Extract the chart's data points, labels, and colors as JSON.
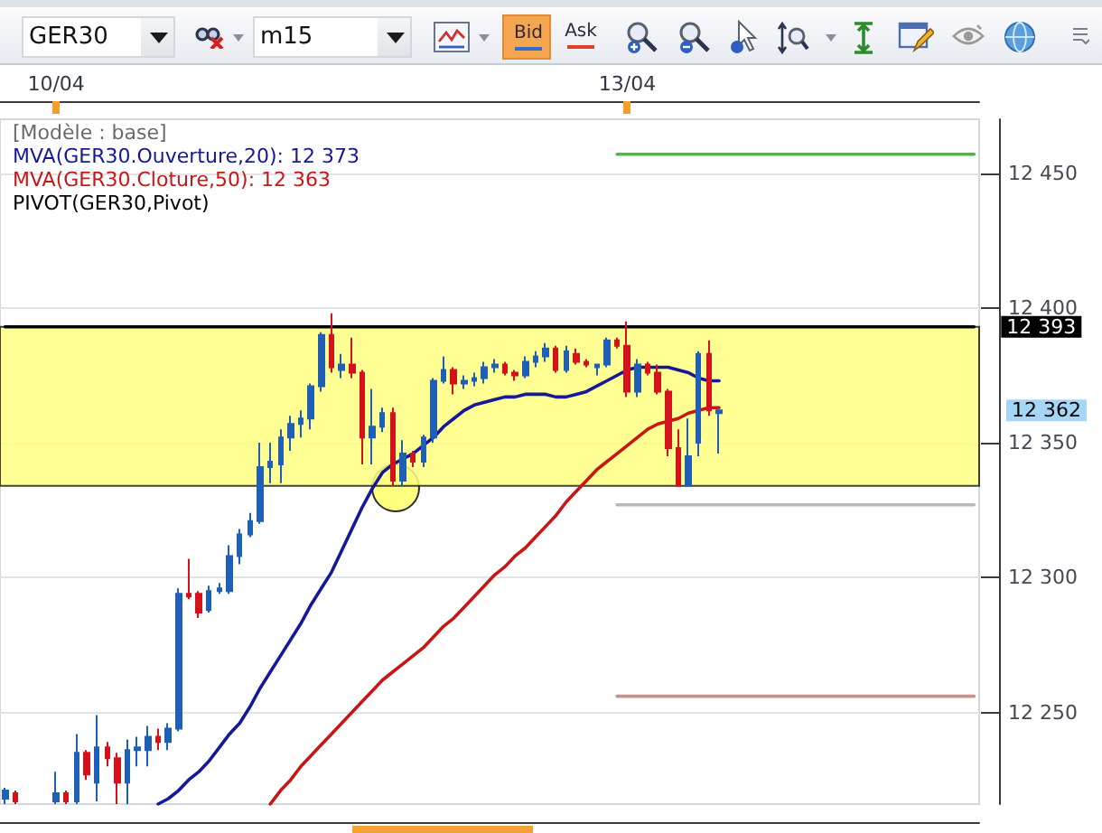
{
  "chart_data": {
    "type": "candlestick",
    "title": "GER30",
    "subtitle": "m15",
    "categories": [
      null,
      null,
      null,
      null,
      null,
      "10/04",
      null,
      null,
      null,
      null,
      null,
      null,
      null,
      null,
      null,
      null,
      null,
      null,
      null,
      null,
      null,
      null,
      null,
      null,
      null,
      null,
      null,
      null,
      null,
      null,
      null,
      null,
      null,
      null,
      null,
      null,
      null,
      null,
      null,
      null,
      null,
      null,
      null,
      null,
      null,
      null,
      null,
      null,
      null,
      null,
      null,
      null,
      null,
      null,
      null,
      null,
      null,
      null,
      null,
      null,
      null,
      "13/04",
      null,
      null,
      null,
      null,
      null,
      null,
      null,
      null,
      null,
      null,
      null,
      null,
      null,
      null,
      null,
      null,
      null,
      null,
      null,
      null,
      null,
      null,
      null,
      null,
      null,
      null,
      null,
      null,
      null,
      null,
      null,
      null,
      null,
      null
    ],
    "series": [
      {
        "ohlc": [
          [
            12218,
            12222,
            12216,
            12221
          ],
          [
            12220,
            12221,
            12216,
            12217
          ],
          null,
          null,
          null,
          [
            12217,
            12228,
            12216,
            12220
          ],
          [
            12220,
            12221,
            12216,
            12217
          ],
          [
            12217,
            12242,
            12216,
            12235
          ],
          [
            12235,
            12236,
            12225,
            12227
          ],
          [
            12224,
            12249,
            12217,
            12237
          ],
          [
            12237,
            12239,
            12230,
            12233
          ],
          [
            12233,
            12235,
            12216,
            12224
          ],
          [
            12224,
            12240,
            12216,
            12236
          ],
          [
            12236,
            12241,
            12230,
            12237
          ],
          [
            12236,
            12245,
            12230,
            12241
          ],
          [
            12241,
            12244,
            12236,
            12239
          ],
          [
            12239,
            12246,
            12236,
            12244
          ],
          [
            12244,
            12296,
            12243,
            12294
          ],
          [
            12294,
            12307,
            12292,
            12293
          ],
          [
            12294,
            12295,
            12285,
            12287
          ],
          [
            12288,
            12297,
            12287,
            12295
          ],
          [
            12295,
            12298,
            12294,
            12296
          ],
          [
            12295,
            12312,
            12294,
            12308
          ],
          [
            12308,
            12318,
            12305,
            12316
          ],
          [
            12316,
            12324,
            12315,
            12321
          ],
          [
            12321,
            12350,
            12320,
            12341
          ],
          [
            12341,
            12350,
            12335,
            12343
          ],
          [
            12342,
            12355,
            12335,
            12352
          ],
          [
            12352,
            12360,
            12347,
            12357
          ],
          [
            12357,
            12362,
            12352,
            12359
          ],
          [
            12359,
            12372,
            12355,
            12371
          ],
          [
            12371,
            12391,
            12369,
            12390
          ],
          [
            12390,
            12398,
            12376,
            12378
          ],
          [
            12377,
            12383,
            12374,
            12379
          ],
          [
            12379,
            12389,
            12374,
            12376
          ],
          [
            12376,
            12377,
            12342,
            12352
          ],
          [
            12352,
            12370,
            12342,
            12356
          ],
          [
            12356,
            12363,
            12354,
            12361
          ],
          [
            12361,
            12363,
            12334,
            12336
          ],
          [
            12336,
            12351,
            12334,
            12346
          ],
          [
            12346,
            12347,
            12341,
            12343
          ],
          [
            12343,
            12353,
            12341,
            12352
          ],
          [
            12352,
            12374,
            12350,
            12373
          ],
          [
            12373,
            12382,
            12372,
            12377
          ],
          [
            12377,
            12378,
            12368,
            12372
          ],
          [
            12372,
            12375,
            12370,
            12373
          ],
          [
            12373,
            12376,
            12371,
            12374
          ],
          [
            12374,
            12380,
            12372,
            12378
          ],
          [
            12378,
            12381,
            12376,
            12379
          ],
          [
            12379,
            12380,
            12375,
            12376
          ],
          [
            12376,
            12377,
            12373,
            12375
          ],
          [
            12375,
            12382,
            12374,
            12380
          ],
          [
            12380,
            12384,
            12378,
            12382
          ],
          [
            12382,
            12387,
            12380,
            12385
          ],
          [
            12385,
            12386,
            12376,
            12377
          ],
          [
            12377,
            12386,
            12376,
            12384
          ],
          [
            12383,
            12385,
            12379,
            12380
          ],
          [
            12380,
            12381,
            12378,
            12379
          ],
          [
            12378,
            12379,
            12375,
            12379
          ],
          [
            12379,
            12389,
            12378,
            12388
          ],
          [
            12388,
            12389,
            12385,
            12386
          ],
          [
            12386,
            12395,
            12367,
            12369
          ],
          [
            12369,
            12381,
            12367,
            12379
          ],
          [
            12379,
            12380,
            12375,
            12376
          ],
          [
            12376,
            12379,
            12368,
            12369
          ],
          [
            12369,
            12370,
            12345,
            12348
          ],
          [
            12348,
            12355,
            12334,
            12334
          ],
          [
            12334,
            12359,
            12334,
            12345
          ],
          [
            12350,
            12384,
            12345,
            12383
          ],
          [
            12383,
            12388,
            12360,
            12362
          ],
          [
            12361,
            12363,
            12346,
            12362
          ],
          null,
          null,
          null,
          null,
          null,
          null,
          null,
          null,
          null,
          null,
          null,
          null,
          null,
          null,
          null,
          null,
          null,
          null,
          null,
          null,
          null,
          null,
          null,
          null,
          null
        ],
        "colors": [
          "#1f5fb5",
          "#d3121b",
          null,
          null,
          null,
          "#1f5fb5",
          "#d3121b",
          "#1f5fb5",
          "#d3121b",
          "#1f5fb5",
          "#d3121b",
          "#d3121b",
          "#1f5fb5",
          "#1f5fb5",
          "#1f5fb5",
          "#d3121b",
          "#1f5fb5",
          "#1f5fb5",
          "#d3121b",
          "#d3121b",
          "#1f5fb5",
          "#1f5fb5",
          "#1f5fb5",
          "#1f5fb5",
          "#1f5fb5",
          "#1f5fb5",
          "#1f5fb5",
          "#1f5fb5",
          "#1f5fb5",
          "#1f5fb5",
          "#1f5fb5",
          "#1f5fb5",
          "#d3121b",
          "#1f5fb5",
          "#d3121b",
          "#d3121b",
          "#1f5fb5",
          "#1f5fb5",
          "#d3121b",
          "#1f5fb5",
          "#d3121b",
          "#1f5fb5",
          "#1f5fb5",
          "#1f5fb5",
          "#d3121b",
          "#1f5fb5",
          "#1f5fb5",
          "#1f5fb5",
          "#1f5fb5",
          "#d3121b",
          "#d3121b",
          "#1f5fb5",
          "#1f5fb5",
          "#1f5fb5",
          "#d3121b",
          "#1f5fb5",
          "#d3121b",
          "#d3121b",
          "#1f5fb5",
          "#1f5fb5",
          "#d3121b",
          "#d3121b",
          "#1f5fb5",
          "#d3121b",
          "#d3121b",
          "#d3121b",
          "#d3121b",
          "#1f5fb5",
          "#1f5fb5",
          "#d3121b",
          "#1f5fb5",
          null,
          null,
          null,
          null,
          null,
          null,
          null,
          null,
          null,
          null,
          null,
          null,
          null,
          null,
          null,
          null,
          null,
          null,
          null,
          null,
          null,
          null,
          null,
          null,
          null
        ]
      },
      {
        "name": "MVA(GER30.Ouverture,20): 12 373",
        "type": "line",
        "color": "#16189a",
        "values": [
          null,
          null,
          null,
          null,
          null,
          null,
          null,
          null,
          null,
          null,
          null,
          null,
          null,
          null,
          null,
          12216,
          12218,
          12221,
          12225,
          12228,
          12232,
          12237,
          12242,
          12246,
          12252,
          12259,
          12265,
          12271,
          12277,
          12283,
          12290,
          12296,
          12302,
          12310,
          12318,
          12326,
          12333,
          12339,
          12342,
          12344,
          12346,
          12349,
          12352,
          12356,
          12359,
          12362,
          12364,
          12365,
          12366,
          12367,
          12367,
          12368,
          12368,
          12368,
          12367,
          12367,
          12368,
          12369,
          12371,
          12373,
          12375,
          12377,
          12378,
          12378,
          12378,
          12378,
          12377,
          12376,
          12374,
          12373,
          12373,
          null,
          null,
          null,
          null,
          null,
          null,
          null,
          null,
          null,
          null,
          null,
          null,
          null,
          null,
          null,
          null,
          null,
          null,
          null,
          null,
          null,
          null,
          null,
          null,
          null
        ]
      },
      {
        "name": "MVA(GER30.Cloture,50): 12 363",
        "type": "line",
        "color": "#c81616",
        "values": [
          null,
          null,
          null,
          null,
          null,
          null,
          null,
          null,
          null,
          null,
          null,
          null,
          null,
          null,
          null,
          null,
          null,
          null,
          null,
          null,
          null,
          null,
          null,
          null,
          null,
          null,
          12216,
          12221,
          12225,
          12230,
          12234,
          12238,
          12242,
          12246,
          12250,
          12254,
          12258,
          12262,
          12265,
          12268,
          12271,
          12274,
          12278,
          12282,
          12285,
          12289,
          12293,
          12297,
          12301,
          12304,
          12308,
          12311,
          12315,
          12319,
          12323,
          12328,
          12332,
          12336,
          12340,
          12343,
          12346,
          12349,
          12352,
          12355,
          12357,
          12358,
          12359,
          12361,
          12362,
          12363,
          12363,
          null,
          null,
          null,
          null,
          null,
          null,
          null,
          null,
          null,
          null,
          null,
          null,
          null,
          null,
          null,
          null,
          null,
          null,
          null,
          null,
          null,
          null,
          null,
          null,
          null
        ]
      },
      {
        "name": "PIVOT(GER30,Pivot)",
        "type": "line",
        "color": "#000000",
        "values": [
          12393,
          12393,
          12393,
          12393,
          12393,
          12393,
          12393,
          12393,
          12393,
          12393,
          12393,
          12393,
          12393,
          12393,
          12393,
          12393,
          12393,
          12393,
          12393,
          12393,
          12393,
          12393,
          12393,
          12393,
          12393,
          12393,
          12393,
          12393,
          12393,
          12393,
          12393,
          12393,
          12393,
          12393,
          12393,
          12393,
          12393,
          12393,
          12393,
          12393,
          12393,
          12393,
          12393,
          12393,
          12393,
          12393,
          12393,
          12393,
          12393,
          12393,
          12393,
          12393,
          12393,
          12393,
          12393,
          12393,
          12393,
          12393,
          12393,
          12393,
          12393,
          12393,
          12393,
          12393,
          12393,
          12393,
          12393,
          12393,
          12393,
          12393,
          12393,
          12393,
          12393,
          12393,
          12393,
          12393,
          12393,
          12393,
          12393,
          12393,
          12393,
          12393,
          12393,
          12393,
          12393,
          12393,
          12393,
          12393,
          12393,
          12393,
          12393,
          12393,
          12393,
          12393,
          12393,
          12393
        ],
        "value_labels": [
          null,
          null,
          null,
          null,
          null,
          null,
          null,
          null,
          null,
          null,
          null,
          null,
          null,
          null,
          null,
          null,
          null,
          null,
          null,
          null,
          null,
          null,
          null,
          null,
          null,
          null,
          null,
          null,
          null,
          null,
          null,
          null,
          null,
          null,
          null,
          null,
          null,
          null,
          null,
          null,
          null,
          null,
          null,
          null,
          null,
          null,
          null,
          null,
          null,
          null,
          null,
          null,
          null,
          null,
          null,
          null,
          null,
          null,
          null,
          null,
          null,
          null,
          null,
          null,
          null,
          null,
          null,
          null,
          null,
          null,
          null,
          null,
          null,
          null,
          null,
          null,
          null,
          null,
          null,
          null,
          null,
          null,
          null,
          null,
          null,
          null,
          null,
          null,
          null,
          null,
          null,
          null,
          null,
          null,
          null,
          "12 393"
        ]
      },
      {
        "type": "line",
        "color": "#4cb84c",
        "values": [
          null,
          null,
          null,
          null,
          null,
          null,
          null,
          null,
          null,
          null,
          null,
          null,
          null,
          null,
          null,
          null,
          null,
          null,
          null,
          null,
          null,
          null,
          null,
          null,
          null,
          null,
          null,
          null,
          null,
          null,
          null,
          null,
          null,
          null,
          null,
          null,
          null,
          null,
          null,
          null,
          null,
          null,
          null,
          null,
          null,
          null,
          null,
          null,
          null,
          null,
          null,
          null,
          null,
          null,
          null,
          null,
          null,
          null,
          null,
          null,
          12457,
          12457,
          12457,
          12457,
          12457,
          12457,
          12457,
          12457,
          12457,
          12457,
          12457,
          12457,
          12457,
          12457,
          12457,
          12457,
          12457,
          12457,
          12457,
          12457,
          12457,
          12457,
          12457,
          12457,
          12457,
          12457,
          12457,
          12457,
          12457,
          12457,
          12457,
          12457,
          12457,
          12457,
          12457,
          12457
        ]
      },
      {
        "type": "line",
        "color": "#b9b9b9",
        "values": [
          null,
          null,
          null,
          null,
          null,
          null,
          null,
          null,
          null,
          null,
          null,
          null,
          null,
          null,
          null,
          null,
          null,
          null,
          null,
          null,
          null,
          null,
          null,
          null,
          null,
          null,
          null,
          null,
          null,
          null,
          null,
          null,
          null,
          null,
          null,
          null,
          null,
          null,
          null,
          null,
          null,
          null,
          null,
          null,
          null,
          null,
          null,
          null,
          null,
          null,
          null,
          null,
          null,
          null,
          null,
          null,
          null,
          null,
          null,
          null,
          12327,
          12327,
          12327,
          12327,
          12327,
          12327,
          12327,
          12327,
          12327,
          12327,
          12327,
          12327,
          12327,
          12327,
          12327,
          12327,
          12327,
          12327,
          12327,
          12327,
          12327,
          12327,
          12327,
          12327,
          12327,
          12327,
          12327,
          12327,
          12327,
          12327,
          12327,
          12327,
          12327,
          12327,
          12327,
          12327
        ]
      },
      {
        "type": "line",
        "color": "#c99090",
        "values": [
          null,
          null,
          null,
          null,
          null,
          null,
          null,
          null,
          null,
          null,
          null,
          null,
          null,
          null,
          null,
          null,
          null,
          null,
          null,
          null,
          null,
          null,
          null,
          null,
          null,
          null,
          null,
          null,
          null,
          null,
          null,
          null,
          null,
          null,
          null,
          null,
          null,
          null,
          null,
          null,
          null,
          null,
          null,
          null,
          null,
          null,
          null,
          null,
          null,
          null,
          null,
          null,
          null,
          null,
          null,
          null,
          null,
          null,
          null,
          null,
          12256,
          12256,
          12256,
          12256,
          12256,
          12256,
          12256,
          12256,
          12256,
          12256,
          12256,
          12256,
          12256,
          12256,
          12256,
          12256,
          12256,
          12256,
          12256,
          12256,
          12256,
          12256,
          12256,
          12256,
          12256,
          12256,
          12256,
          12256,
          12256,
          12256,
          12256,
          12256,
          12256,
          12256,
          12256,
          12256
        ]
      }
    ],
    "ylim": [
      12216,
      12470
    ],
    "yticks": [
      {
        "value": 12250,
        "label": "12 250"
      },
      {
        "value": 12300,
        "label": "12 300"
      },
      {
        "value": 12350,
        "label": "12 350"
      },
      {
        "value": 12400,
        "label": "12 400"
      },
      {
        "value": 12450,
        "label": "12 450"
      }
    ],
    "bands": [
      {
        "axis": "y",
        "from": 12334,
        "to": 12393,
        "color": "#ffff80"
      }
    ],
    "annotations": [
      "[Modèle : base]",
      "Bid",
      "Ask",
      "12 362"
    ],
    "grid": "y"
  }
}
